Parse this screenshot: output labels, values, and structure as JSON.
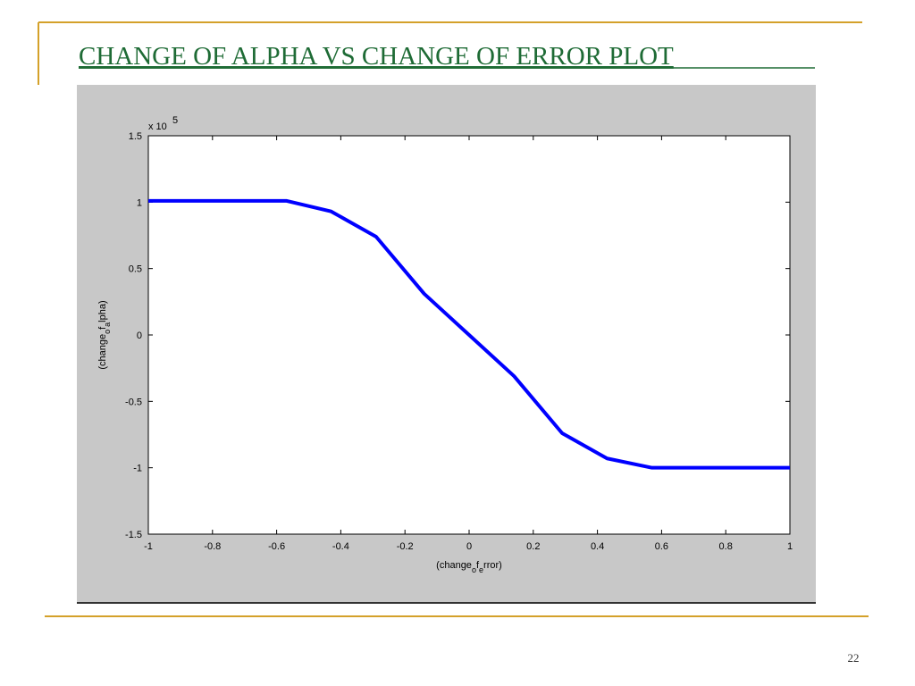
{
  "chart_data": {
    "type": "line",
    "title": "CHANGE OF ALPHA VS CHANGE OF ERROR PLOT",
    "x": [
      -1,
      -0.57,
      -0.43,
      -0.29,
      -0.14,
      0,
      0.14,
      0.29,
      0.43,
      0.57,
      1
    ],
    "series": [
      {
        "color": "#0000ff",
        "values": [
          1.01,
          1.01,
          0.93,
          0.74,
          0.31,
          0,
          -0.31,
          -0.74,
          -0.93,
          -1.0,
          -1.0
        ]
      }
    ],
    "xlim": [
      -1,
      1
    ],
    "xticks": [
      -1,
      -0.8,
      -0.6,
      -0.4,
      -0.2,
      0,
      0.2,
      0.4,
      0.6,
      0.8,
      1
    ],
    "ylim": [
      -1.5,
      1.5
    ],
    "yticks": [
      -1.5,
      -1,
      -0.5,
      0,
      0.5,
      1,
      1.5
    ],
    "y_scale_label": "x 10",
    "y_scale_exponent": "5",
    "xlabel": [
      {
        "text": "(change"
      },
      {
        "text": "o",
        "sub": true
      },
      {
        "text": "f"
      },
      {
        "text": "e",
        "sub": true
      },
      {
        "text": "rror)"
      }
    ],
    "ylabel": [
      {
        "text": "(change"
      },
      {
        "text": "o",
        "sub": true
      },
      {
        "text": "f"
      },
      {
        "text": "a",
        "sub": true
      },
      {
        "text": "lpha)"
      }
    ],
    "grid": false
  },
  "page_number": "22"
}
